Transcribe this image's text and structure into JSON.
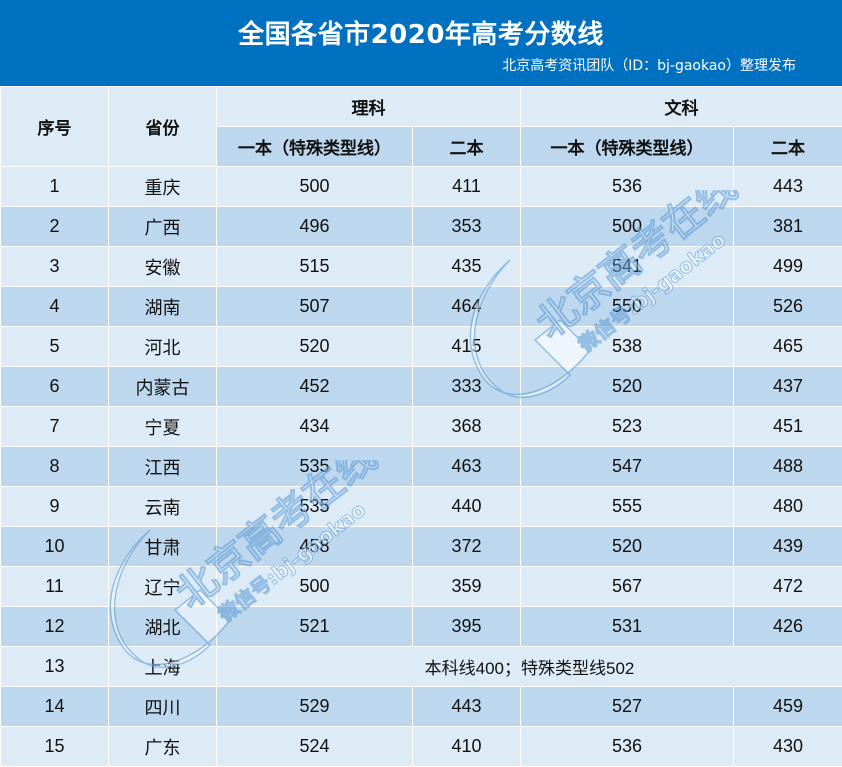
{
  "header": {
    "title": "全国各省市2020年高考分数线",
    "subtitle": "北京高考资讯团队（ID：bj-gaokao）整理发布",
    "bg_color": "#0070c0"
  },
  "table": {
    "columns": {
      "index": "序号",
      "province": "省份",
      "science": "理科",
      "arts": "文科",
      "tier1": "一本（特殊类型线）",
      "tier2": "二本"
    },
    "rows": [
      {
        "no": "1",
        "province": "重庆",
        "sci1": "500",
        "sci2": "411",
        "art1": "536",
        "art2": "443"
      },
      {
        "no": "2",
        "province": "广西",
        "sci1": "496",
        "sci2": "353",
        "art1": "500",
        "art2": "381"
      },
      {
        "no": "3",
        "province": "安徽",
        "sci1": "515",
        "sci2": "435",
        "art1": "541",
        "art2": "499"
      },
      {
        "no": "4",
        "province": "湖南",
        "sci1": "507",
        "sci2": "464",
        "art1": "550",
        "art2": "526"
      },
      {
        "no": "5",
        "province": "河北",
        "sci1": "520",
        "sci2": "415",
        "art1": "538",
        "art2": "465"
      },
      {
        "no": "6",
        "province": "内蒙古",
        "sci1": "452",
        "sci2": "333",
        "art1": "520",
        "art2": "437"
      },
      {
        "no": "7",
        "province": "宁夏",
        "sci1": "434",
        "sci2": "368",
        "art1": "523",
        "art2": "451"
      },
      {
        "no": "8",
        "province": "江西",
        "sci1": "535",
        "sci2": "463",
        "art1": "547",
        "art2": "488"
      },
      {
        "no": "9",
        "province": "云南",
        "sci1": "535",
        "sci2": "440",
        "art1": "555",
        "art2": "480"
      },
      {
        "no": "10",
        "province": "甘肃",
        "sci1": "458",
        "sci2": "372",
        "art1": "520",
        "art2": "439"
      },
      {
        "no": "11",
        "province": "辽宁",
        "sci1": "500",
        "sci2": "359",
        "art1": "567",
        "art2": "472"
      },
      {
        "no": "12",
        "province": "湖北",
        "sci1": "521",
        "sci2": "395",
        "art1": "531",
        "art2": "426"
      },
      {
        "no": "13",
        "province": "上海",
        "note": "本科线400；特殊类型线502"
      },
      {
        "no": "14",
        "province": "四川",
        "sci1": "529",
        "sci2": "443",
        "art1": "527",
        "art2": "459"
      },
      {
        "no": "15",
        "province": "广东",
        "sci1": "524",
        "sci2": "410",
        "art1": "536",
        "art2": "430"
      }
    ],
    "colors": {
      "light_row": "#ddebf7",
      "mid_row": "#bdd7ee"
    }
  },
  "watermark": {
    "brand": "北京高考在线",
    "wechat": "微信号:bj-gaokao",
    "logo_icon": "gk-logo-icon"
  }
}
